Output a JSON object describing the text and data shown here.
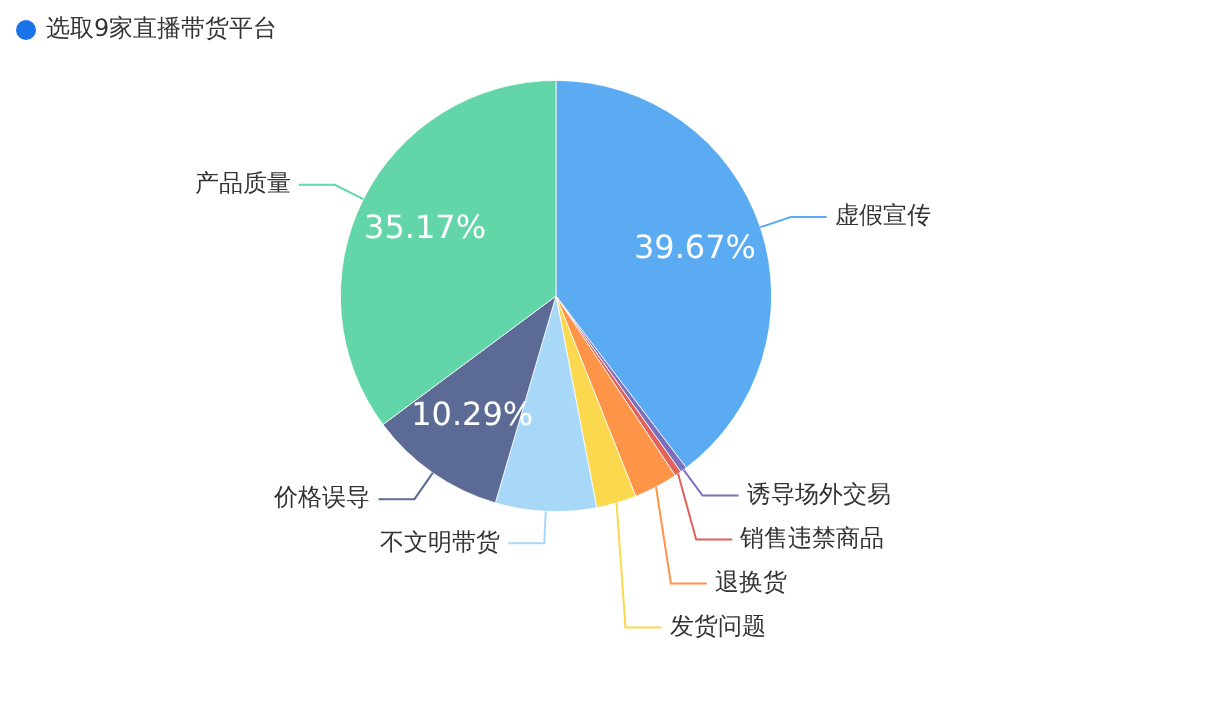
{
  "chart_data": {
    "type": "pie",
    "title": "选取9家直播带货平台",
    "categories": [
      "虚假宣传",
      "诱导场外交易",
      "销售违禁商品",
      "退换货",
      "发货问题",
      "不文明带货",
      "价格误导",
      "产品质量"
    ],
    "values": [
      39.67,
      0.5,
      0.5,
      3.3,
      3.0,
      7.57,
      10.29,
      35.17
    ],
    "colors": [
      "#5aabf2",
      "#7b6fc0",
      "#e0625a",
      "#fd9448",
      "#fbd84e",
      "#a8d8f8",
      "#5b6b95",
      "#62d6a8"
    ],
    "value_labels": [
      "39.67%",
      null,
      null,
      null,
      null,
      null,
      "10.29%",
      "35.17%"
    ],
    "legend": false
  }
}
